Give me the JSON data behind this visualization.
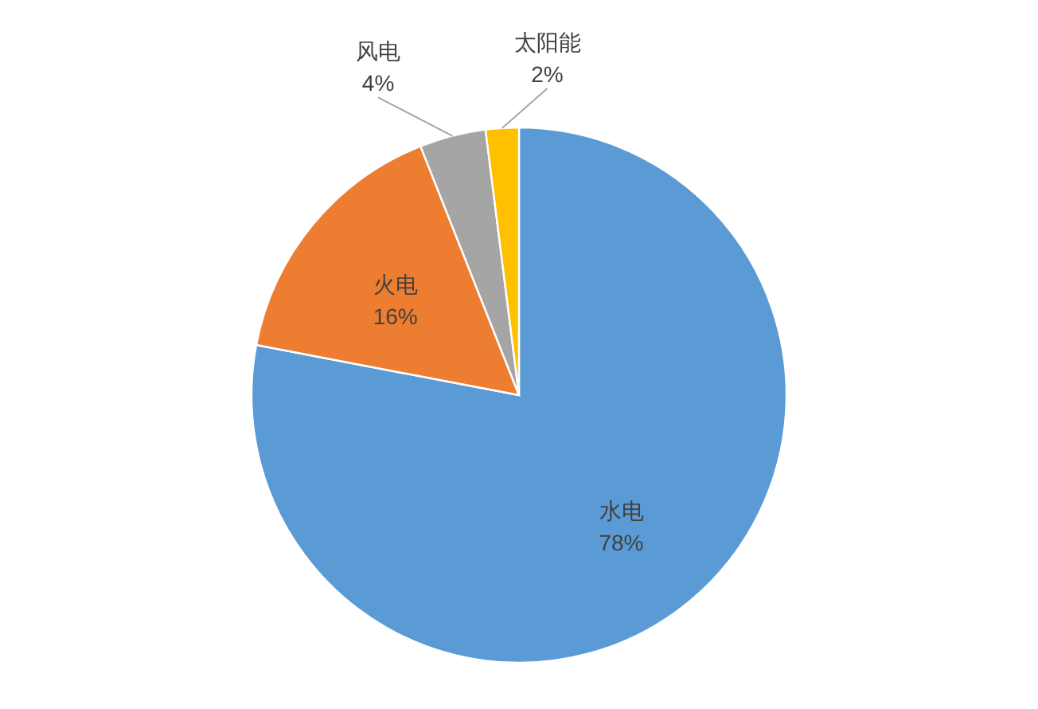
{
  "chart_data": {
    "type": "pie",
    "categories": [
      "水电",
      "火电",
      "风电",
      "太阳能"
    ],
    "values": [
      78,
      16,
      4,
      2
    ],
    "value_labels": [
      "78%",
      "16%",
      "4%",
      "2%"
    ],
    "colors": [
      "#5b9bd5",
      "#ed7d31",
      "#a5a5a5",
      "#ffc000"
    ]
  }
}
